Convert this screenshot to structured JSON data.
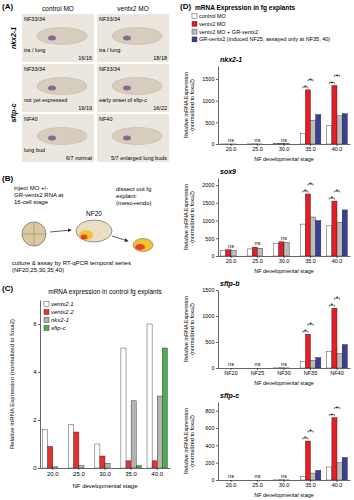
{
  "panel_labels": [
    "(A)",
    "(B)",
    "(C)",
    "(D)"
  ],
  "panel_a": {
    "columns": [
      "control MO",
      "ventx2 MO"
    ],
    "genes": [
      {
        "label": "nkx2-1",
        "rows": [
          [
            {
              "stage": "NF33/34",
              "note": "tra / lung",
              "count": "16/16"
            },
            {
              "stage": "NF33/34",
              "note": "tra / lung",
              "count": "18/18"
            }
          ]
        ]
      },
      {
        "label": "sftp-c",
        "rows": [
          [
            {
              "stage": "NF33/34",
              "note": "not yet expressed",
              "count": "19/19"
            },
            {
              "stage": "NF33/34",
              "note": "early onset of sftp-c",
              "count": "16/22"
            }
          ],
          [
            {
              "stage": "NF40",
              "note": "lung bud",
              "count": "6/7 normal"
            },
            {
              "stage": "NF40",
              "count": "5/7 enlarged lung buds"
            }
          ]
        ]
      }
    ]
  },
  "panel_b": {
    "inject": "inject MO +/- GR-ventx2 RNA at 16-cell stage",
    "stage": "NF20",
    "dissect": "dissect out fg explant: (meso+endo)",
    "assay": "culture & assay by RT-qPCR temporal series (NF20,25,30,35,40)"
  },
  "chart_data": [
    {
      "type": "bar",
      "title": "mRNA expression in control fg explants",
      "x_label": "NF developmental stage",
      "y_label": "Relative mRNA Expression (normalized to foxa2)",
      "categories": [
        "20.0",
        "25.0",
        "30.0",
        "35.0",
        "40.0"
      ],
      "series": [
        {
          "name": "ventx2.1",
          "color": "#ffffff",
          "values": [
            1.6,
            1.8,
            1.0,
            5.0,
            6.0
          ]
        },
        {
          "name": "ventx2.2",
          "color": "#e8312f",
          "values": [
            0.9,
            1.5,
            0.5,
            0.3,
            0.3
          ]
        },
        {
          "name": "nkx2-1",
          "color": "#b3b3b3",
          "values": [
            0.05,
            0.1,
            0.2,
            2.8,
            3.0
          ]
        },
        {
          "name": "sftp-c",
          "color": "#4cae4c",
          "values": [
            0,
            0,
            0,
            0.1,
            5.0
          ]
        }
      ],
      "ylim": [
        0,
        7
      ],
      "yticks": [
        0,
        2,
        4,
        6
      ],
      "legend": "upper left"
    },
    {
      "type": "bar",
      "title": "nkx2-1",
      "legend_title": "mRNA Expression in fg explants",
      "legend": "top",
      "x_label": "NF developmental stage",
      "y_label": "Relative mRNA Expression (normalized to foxa2)",
      "categories": [
        "20.0",
        "25.0",
        "30.0",
        "35.0",
        "40.0"
      ],
      "series": [
        {
          "name": "control MO",
          "color": "#ffffff",
          "values": [
            1,
            2,
            5,
            250,
            420
          ]
        },
        {
          "name": "ventx2 MO",
          "color": "#e31f26",
          "values": [
            1,
            3,
            8,
            1250,
            1350
          ]
        },
        {
          "name": "ventx2 MO + GR-ventx2",
          "color": "#bdbdbd",
          "values": [
            1,
            2,
            6,
            550,
            650
          ]
        },
        {
          "name": "GR-ventx2 (induced NF25, assayed only at NF35, 40)",
          "color": "#3a3f95",
          "values": [
            null,
            null,
            null,
            680,
            700
          ]
        }
      ],
      "ylim": [
        0,
        1800
      ],
      "yticks": [
        0,
        500,
        1000,
        1500
      ],
      "significance": [
        [
          "ns"
        ],
        [
          "ns"
        ],
        [
          "ns"
        ],
        [
          "*",
          "*"
        ],
        [
          "*",
          "*"
        ]
      ]
    },
    {
      "type": "bar",
      "title": "sox9",
      "x_label": "NF developmental stage",
      "y_label": "Relative mRNA Expression (normalized to foxa2)",
      "categories": [
        "20.0",
        "25.0",
        "30.0",
        "35.0",
        "40.0"
      ],
      "series": [
        {
          "color": "#ffffff",
          "values": [
            150,
            200,
            350,
            900,
            850
          ]
        },
        {
          "color": "#e31f26",
          "values": [
            180,
            250,
            400,
            1750,
            1550
          ]
        },
        {
          "color": "#bdbdbd",
          "values": [
            160,
            220,
            380,
            1100,
            950
          ]
        },
        {
          "color": "#3a3f95",
          "values": [
            null,
            null,
            null,
            1000,
            1300
          ]
        }
      ],
      "ylim": [
        0,
        2200
      ],
      "yticks": [
        0,
        500,
        1000,
        1500,
        2000
      ],
      "significance": [
        [
          "ns"
        ],
        [
          "ns"
        ],
        [
          "ns"
        ],
        [
          "*",
          "*"
        ],
        [
          "*",
          "*"
        ]
      ]
    },
    {
      "type": "bar",
      "title": "sftp-b",
      "x_label": "NF developmental stage",
      "y_label": "Relative mRNA Expression (normalized to foxa2)",
      "categories": [
        "NF20",
        "NF25",
        "NF30",
        "NF35",
        "NF40"
      ],
      "series": [
        {
          "color": "#ffffff",
          "values": [
            0,
            0,
            2,
            120,
            320
          ]
        },
        {
          "color": "#e31f26",
          "values": [
            0,
            0,
            3,
            650,
            1150
          ]
        },
        {
          "color": "#bdbdbd",
          "values": [
            0,
            0,
            2,
            150,
            280
          ]
        },
        {
          "color": "#3a3f95",
          "values": [
            null,
            null,
            null,
            200,
            450
          ]
        }
      ],
      "ylim": [
        0,
        1500
      ],
      "yticks": [
        0,
        500,
        1000,
        1500
      ],
      "significance": [
        [
          "ns"
        ],
        [
          "ns"
        ],
        [
          "ns"
        ],
        [
          "*",
          "*"
        ],
        [
          "*",
          "*"
        ]
      ]
    },
    {
      "type": "bar",
      "title": "sftp-c",
      "x_label": "NF developmental stage",
      "y_label": "Relative mRNA Expression (normalized to foxa2)",
      "categories": [
        "20.0",
        "25.0",
        "30.0",
        "35.0",
        "40.0"
      ],
      "series": [
        {
          "color": "#ffffff",
          "values": [
            0,
            0,
            1,
            40,
            150
          ]
        },
        {
          "color": "#e31f26",
          "values": [
            0,
            0,
            2,
            450,
            720
          ]
        },
        {
          "color": "#bdbdbd",
          "values": [
            0,
            0,
            1,
            80,
            200
          ]
        },
        {
          "color": "#3a3f95",
          "values": [
            null,
            null,
            null,
            110,
            260
          ]
        }
      ],
      "ylim": [
        0,
        900
      ],
      "yticks": [
        0,
        200,
        400,
        600,
        800
      ],
      "significance": [
        [
          "ns"
        ],
        [
          "ns"
        ],
        [
          "ns"
        ],
        [
          "*",
          "*"
        ],
        [
          "*",
          "*"
        ]
      ]
    }
  ]
}
